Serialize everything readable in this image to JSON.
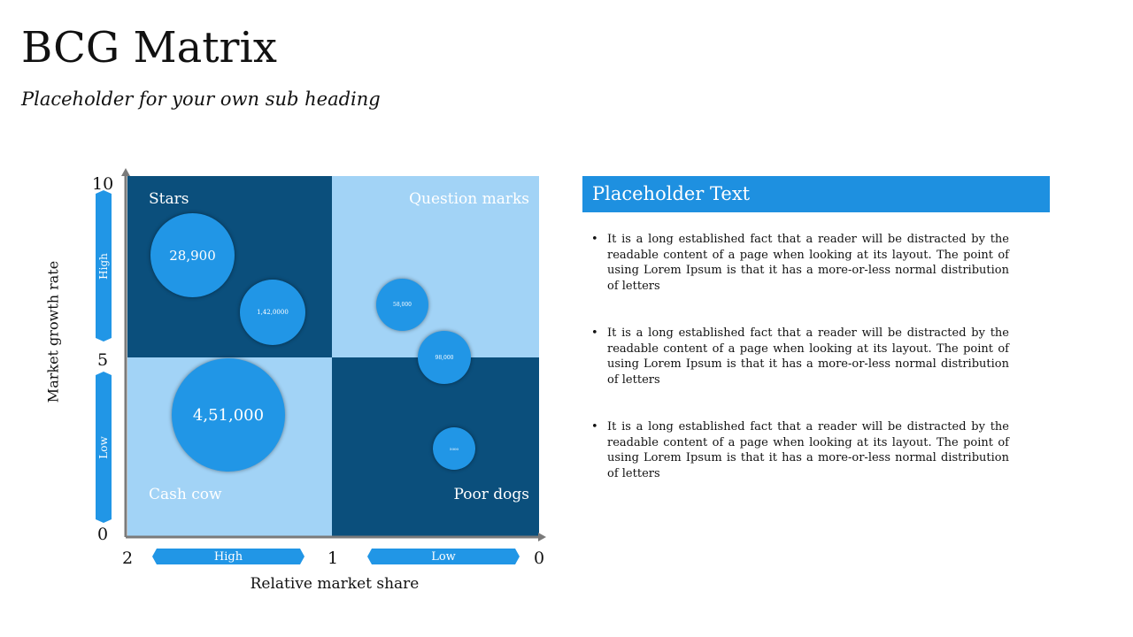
{
  "title": "BCG Matrix",
  "subtitle": "Placeholder for your own sub heading",
  "matrix": {
    "y_axis": {
      "title": "Market growth rate",
      "ticks": [
        "10",
        "5",
        "0"
      ],
      "high": "High",
      "low": "Low"
    },
    "x_axis": {
      "title": "Relative market share",
      "ticks": [
        "2",
        "1",
        "0"
      ],
      "high": "High",
      "low": "Low"
    },
    "quadrants": {
      "stars": "Stars",
      "question_marks": "Question marks",
      "cash_cow": "Cash cow",
      "poor_dogs": "Poor dogs"
    },
    "bubbles": [
      {
        "label": "28,900"
      },
      {
        "label": "1,42,0000"
      },
      {
        "label": "4,51,000"
      },
      {
        "label": "58,000"
      },
      {
        "label": "98,000"
      },
      {
        "label": "5000"
      }
    ],
    "colors": {
      "dark": "#0b4f7c",
      "light": "#a2d3f6",
      "bubble": "#2196e6",
      "accent": "#1e90e0"
    }
  },
  "panel": {
    "heading": "Placeholder Text",
    "bullets": [
      "It is a long established fact that a reader will be distracted by the readable content of a page when looking at its layout. The point of using Lorem Ipsum is that it has a more-or-less normal distribution of letters",
      "It is a long established fact that a reader will be distracted by the readable content of a page when looking at its layout. The point of using Lorem Ipsum is that it has a more-or-less normal distribution of letters",
      "It is a long established fact that a reader will be distracted by the readable content of a page when looking at its layout. The point of using Lorem Ipsum is that it has a more-or-less normal distribution of letters"
    ]
  }
}
